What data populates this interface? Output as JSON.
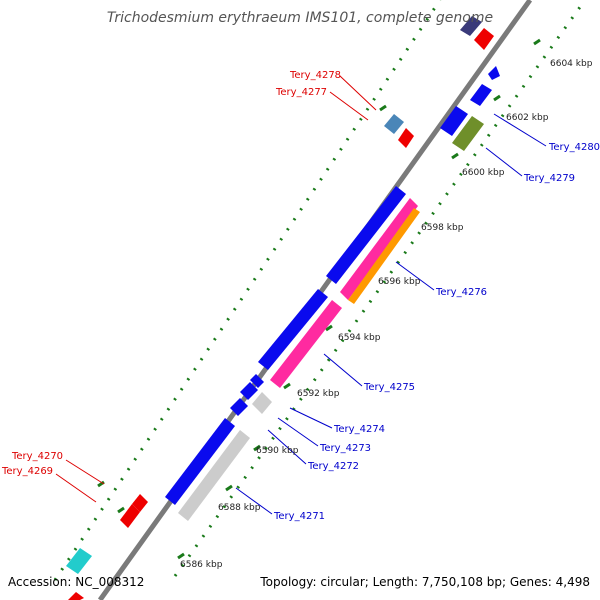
{
  "title": "Trichodesmium erythraeum IMS101, complete genome",
  "accession": "Accession: NC_008312",
  "summary": "Topology: circular; Length: 7,750,108 bp; Genes: 4,498",
  "colors": {
    "backbone": "#7a7a7a",
    "forward_label": "#0000cc",
    "reverse_label": "#dd0000",
    "tick_dots": "#1a7a1a",
    "blue_feature": "#0a0aee",
    "red_feature": "#ee0000",
    "pink_feature": "#ff2aa0",
    "orange_feature": "#ff9900",
    "grey_feature": "#cccccc",
    "olive_feature": "#6f8f2a",
    "steel_feature": "#4a86b8",
    "navy_feature": "#3a3a7a",
    "cyan_feature": "#22cccc"
  },
  "ticks": [
    {
      "label": "6586 kbp"
    },
    {
      "label": "6588 kbp"
    },
    {
      "label": "6590 kbp"
    },
    {
      "label": "6592 kbp"
    },
    {
      "label": "6594 kbp"
    },
    {
      "label": "6596 kbp"
    },
    {
      "label": "6598 kbp"
    },
    {
      "label": "6600 kbp"
    },
    {
      "label": "6602 kbp"
    },
    {
      "label": "6604 kbp"
    }
  ],
  "labels": [
    {
      "text": "Tery_4278",
      "strand": "reverse"
    },
    {
      "text": "Tery_4277",
      "strand": "reverse"
    },
    {
      "text": "Tery_4280",
      "strand": "forward"
    },
    {
      "text": "Tery_4279",
      "strand": "forward"
    },
    {
      "text": "Tery_4276",
      "strand": "forward"
    },
    {
      "text": "Tery_4275",
      "strand": "forward"
    },
    {
      "text": "Tery_4274",
      "strand": "forward"
    },
    {
      "text": "Tery_4273",
      "strand": "forward"
    },
    {
      "text": "Tery_4272",
      "strand": "forward"
    },
    {
      "text": "Tery_4271",
      "strand": "forward"
    },
    {
      "text": "Tery_4270",
      "strand": "reverse"
    },
    {
      "text": "Tery_4269",
      "strand": "reverse"
    }
  ]
}
